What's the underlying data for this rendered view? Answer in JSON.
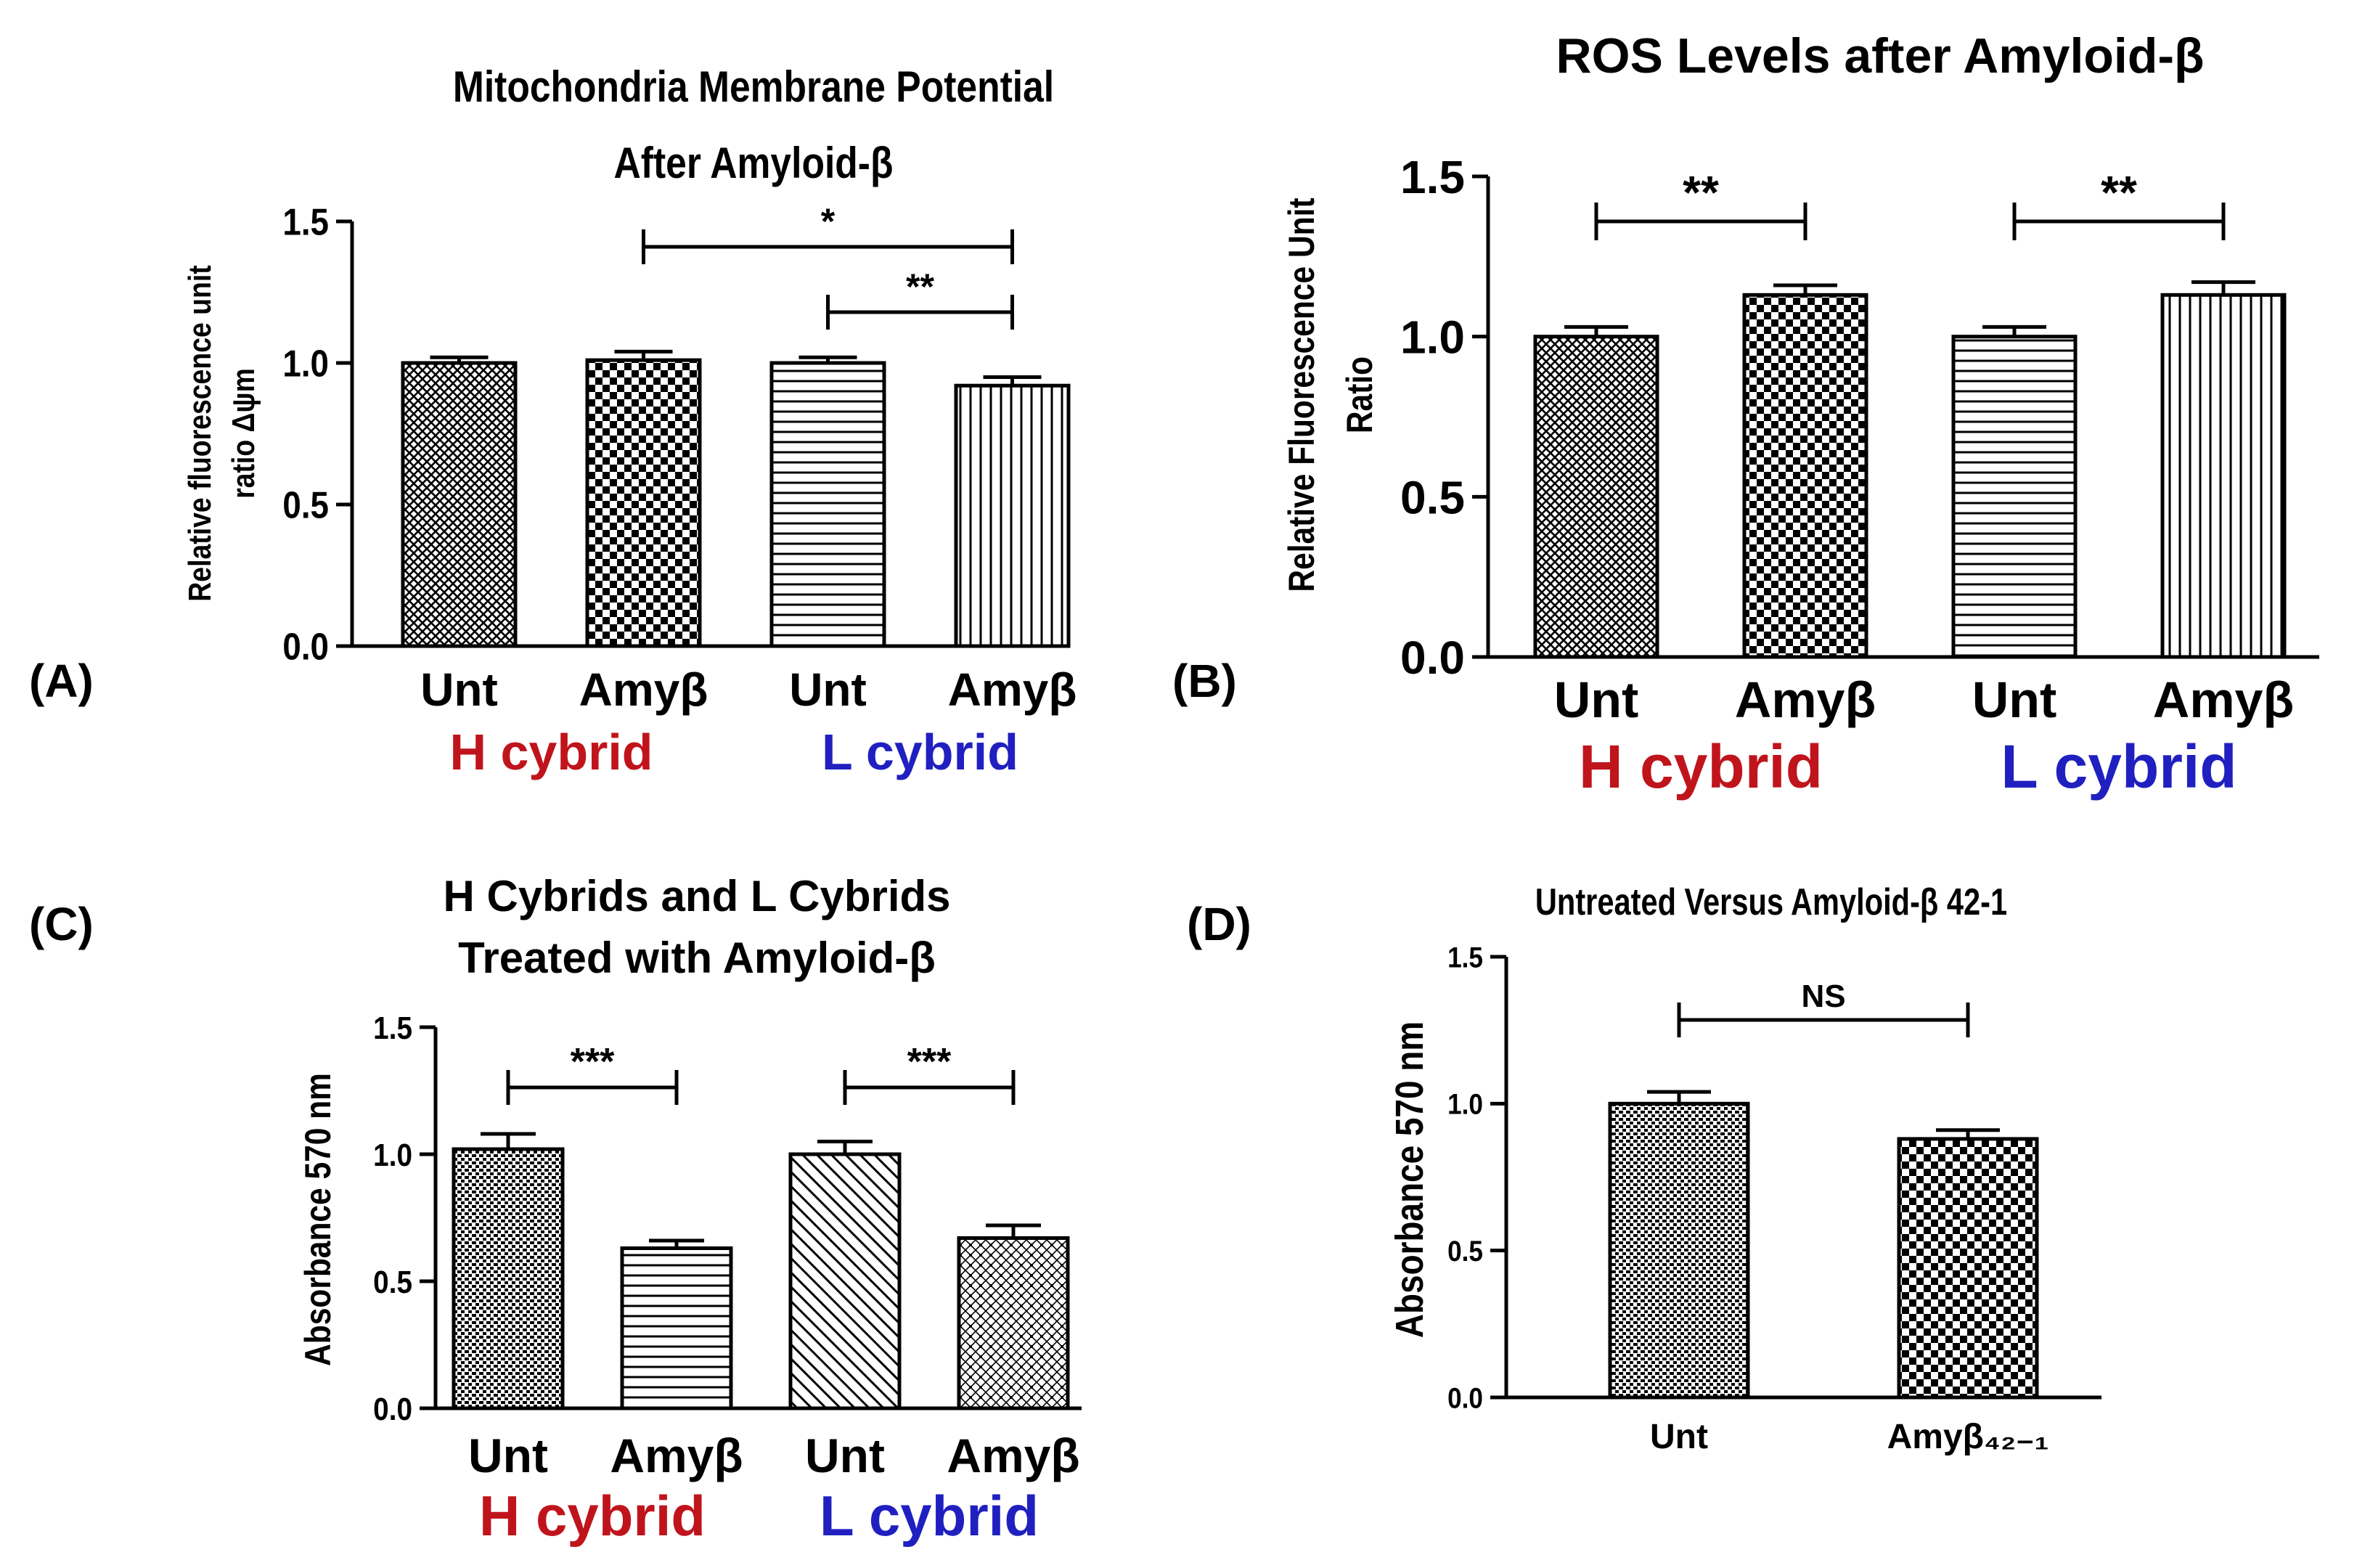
{
  "panels": [
    {
      "label": "(A)",
      "chart_data": {
        "type": "bar",
        "title": "Mitochondria Membrane Potential",
        "subtitle": "After Amyloid-β",
        "ylabel": [
          "Relative fluorescence unit",
          "ratio  Δψm"
        ],
        "ylim": [
          0,
          1.5
        ],
        "yticks": [
          "0.0",
          "0.5",
          "1.0",
          "1.5"
        ],
        "categories": [
          "Unt",
          "Amyβ",
          "Unt",
          "Amyβ"
        ],
        "groups": [
          {
            "name": "H cybrid",
            "color": "#c0141c"
          },
          {
            "name": "L cybrid",
            "color": "#2020c0"
          }
        ],
        "values": [
          1.0,
          1.01,
          1.0,
          0.92
        ],
        "errors": [
          0.02,
          0.03,
          0.02,
          0.03
        ],
        "patterns": [
          "crosshatch-fine",
          "checker",
          "horizontal",
          "vertical"
        ],
        "significance": [
          {
            "from": 1,
            "to": 3,
            "text": "*"
          },
          {
            "from": 2,
            "to": 3,
            "text": "**"
          }
        ]
      }
    },
    {
      "label": "(B)",
      "chart_data": {
        "type": "bar",
        "title": "ROS Levels after Amyloid-β",
        "ylabel": [
          "Relative Fluorescence Unit",
          "Ratio"
        ],
        "ylim": [
          0,
          1.5
        ],
        "yticks": [
          "0.0",
          "0.5",
          "1.0",
          "1.5"
        ],
        "categories": [
          "Unt",
          "Amyβ",
          "Unt",
          "Amyβ"
        ],
        "groups": [
          {
            "name": "H cybrid",
            "color": "#c0141c"
          },
          {
            "name": "L cybrid",
            "color": "#2020c0"
          }
        ],
        "values": [
          1.0,
          1.13,
          1.0,
          1.13
        ],
        "errors": [
          0.03,
          0.03,
          0.03,
          0.04
        ],
        "patterns": [
          "crosshatch-fine",
          "checker",
          "horizontal",
          "vertical"
        ],
        "significance": [
          {
            "from": 0,
            "to": 1,
            "text": "**"
          },
          {
            "from": 2,
            "to": 3,
            "text": "**"
          }
        ]
      }
    },
    {
      "label": "(C)",
      "chart_data": {
        "type": "bar",
        "title": "H Cybrids and L Cybrids",
        "subtitle": "Treated with Amyloid-β",
        "ylabel": [
          "Absorbance 570 nm"
        ],
        "ylim": [
          0,
          1.5
        ],
        "yticks": [
          "0.0",
          "0.5",
          "1.0",
          "1.5"
        ],
        "categories": [
          "Unt",
          "Amyβ",
          "Unt",
          "Amyβ"
        ],
        "groups": [
          {
            "name": "H cybrid",
            "color": "#c0141c"
          },
          {
            "name": "L cybrid",
            "color": "#2020c0"
          }
        ],
        "values": [
          1.02,
          0.63,
          1.0,
          0.67
        ],
        "errors": [
          0.06,
          0.03,
          0.05,
          0.05
        ],
        "patterns": [
          "dots-dense",
          "horizontal",
          "diagonal",
          "crosshatch-diag"
        ],
        "significance": [
          {
            "from": 0,
            "to": 1,
            "text": "***"
          },
          {
            "from": 2,
            "to": 3,
            "text": "***"
          }
        ]
      }
    },
    {
      "label": "(D)",
      "chart_data": {
        "type": "bar",
        "title": "Untreated Versus Amyloid-β 42-1",
        "ylabel": [
          "Absorbance 570 nm"
        ],
        "ylim": [
          0,
          1.5
        ],
        "yticks": [
          "0.0",
          "0.5",
          "1.0",
          "1.5"
        ],
        "categories": [
          "Unt",
          "Amyβ₄₂₋₁"
        ],
        "values": [
          1.0,
          0.88
        ],
        "errors": [
          0.04,
          0.03
        ],
        "patterns": [
          "dots-dense",
          "checker"
        ],
        "significance": [
          {
            "from": 0,
            "to": 1,
            "text": "NS"
          }
        ]
      }
    }
  ]
}
